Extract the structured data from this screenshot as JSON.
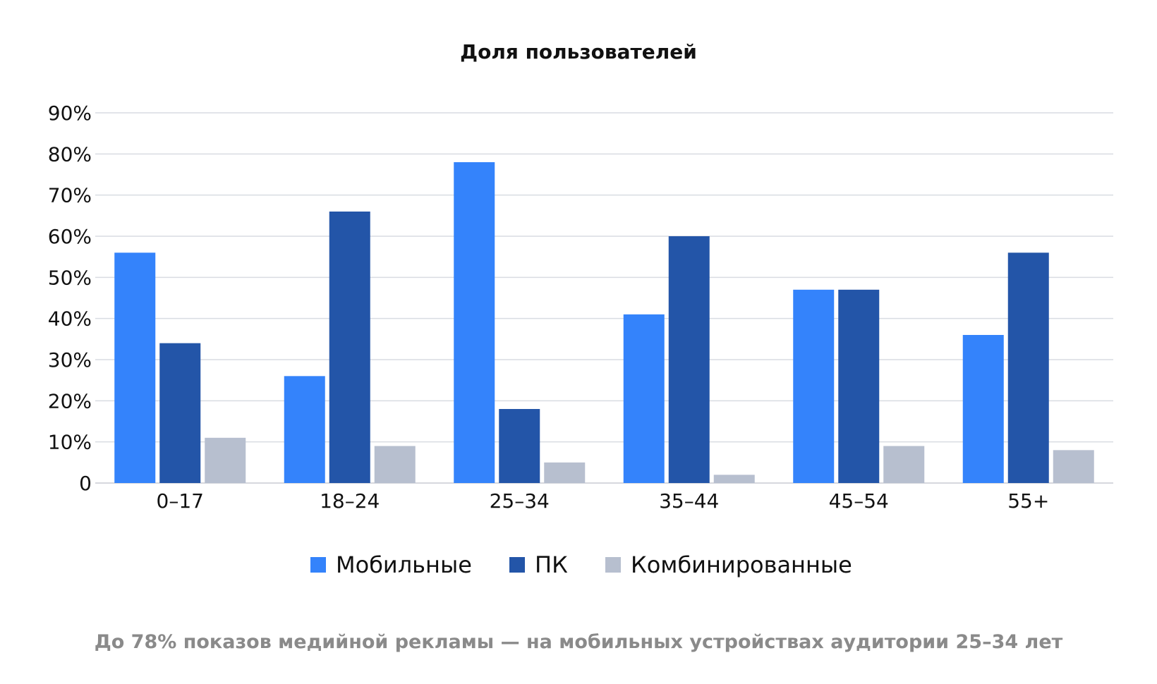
{
  "chart_data": {
    "type": "bar",
    "title": "Доля пользователей",
    "categories": [
      "0–17",
      "18–24",
      "25–34",
      "35–44",
      "45–54",
      "55+"
    ],
    "series": [
      {
        "name": "Мобильные",
        "color": "#3483fb",
        "values": [
          56,
          26,
          78,
          41,
          47,
          36
        ]
      },
      {
        "name": "ПК",
        "color": "#2355a8",
        "values": [
          34,
          66,
          18,
          60,
          47,
          56
        ]
      },
      {
        "name": "Комбинированные",
        "color": "#b7bfcf",
        "values": [
          11,
          9,
          5,
          2,
          9,
          8
        ]
      }
    ],
    "ylim": [
      0,
      90
    ],
    "yticks": [
      0,
      10,
      20,
      30,
      40,
      50,
      60,
      70,
      80,
      90
    ],
    "ytick_labels": [
      "0",
      "10%",
      "20%",
      "30%",
      "40%",
      "50%",
      "60%",
      "70%",
      "80%",
      "90%"
    ],
    "xlabel": "",
    "ylabel": "",
    "grid": true,
    "legend_position": "bottom"
  },
  "footnote": "До 78% показов медийной рекламы  — на мобильных устройствах аудитории 25–34 лет"
}
